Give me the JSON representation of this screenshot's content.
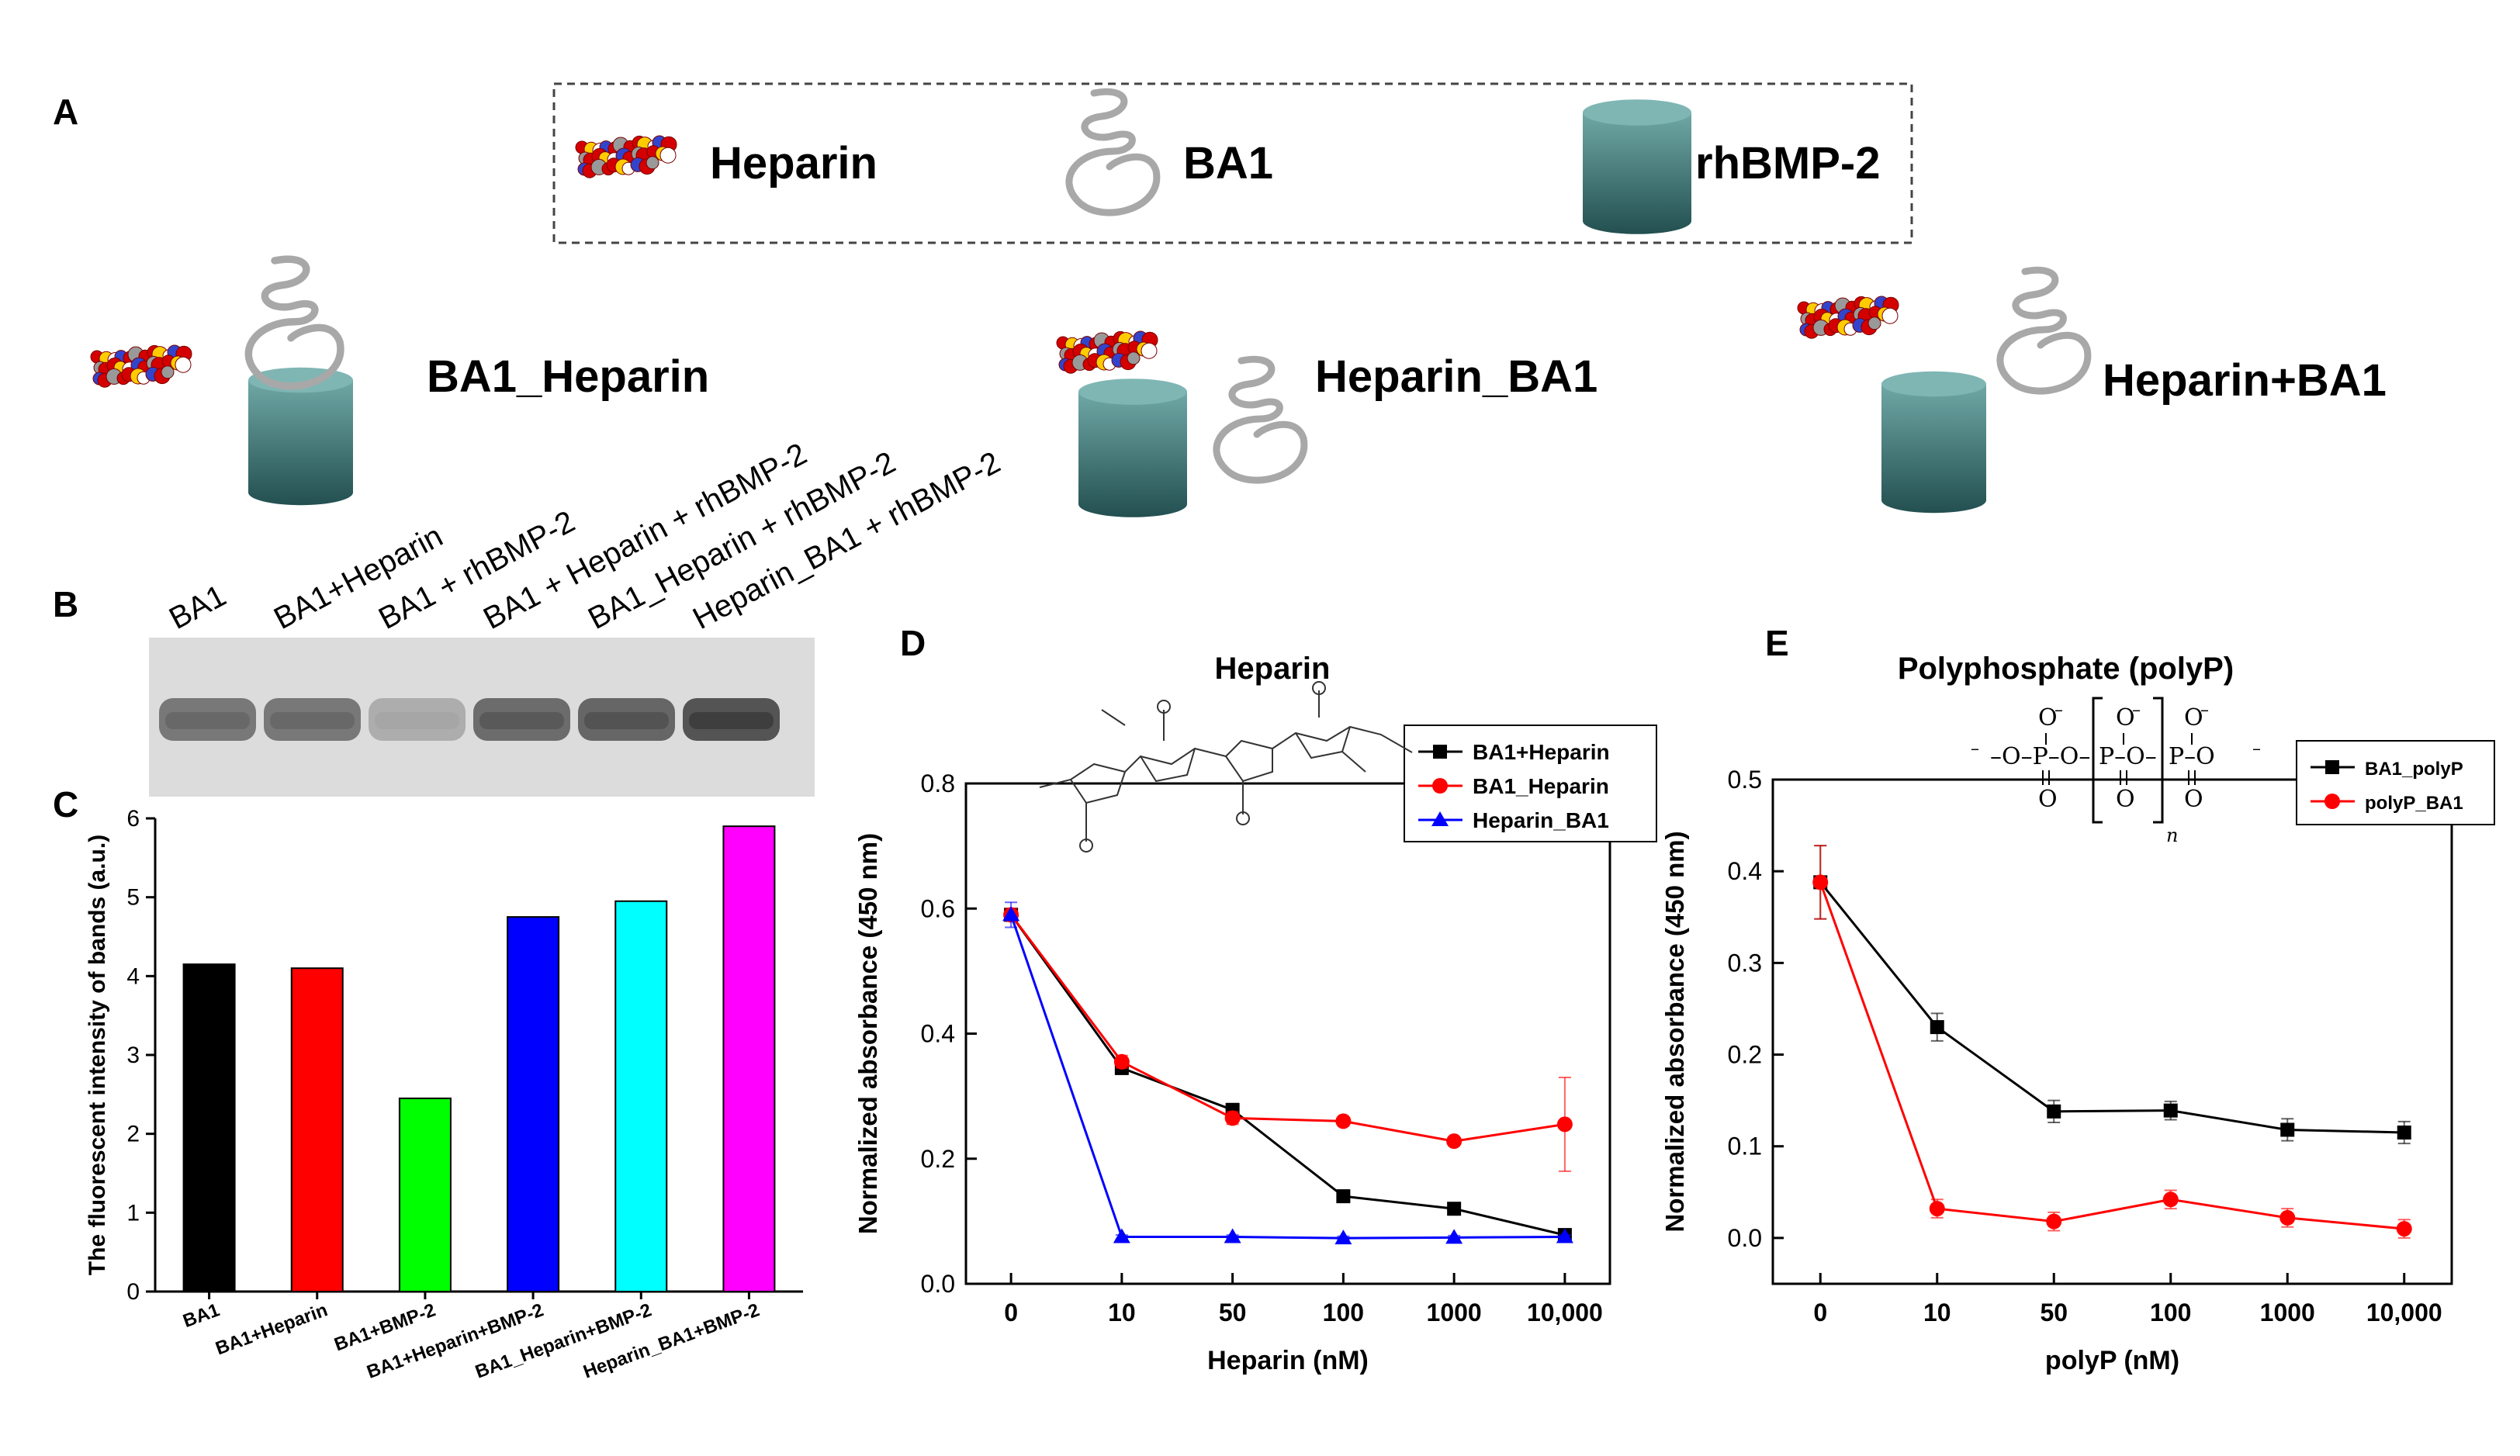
{
  "panel_letters": {
    "a": "A",
    "b": "B",
    "c": "C",
    "d": "D",
    "e": "E"
  },
  "legend_box": {
    "heparin": "Heparin",
    "ba1": "BA1",
    "rhbmp2": "rhBMP-2"
  },
  "complexes": {
    "c1": "BA1_Heparin",
    "c2": "Heparin_BA1",
    "c3": "Heparin+BA1"
  },
  "colors": {
    "protein": "#2f6e6e",
    "protein_top": "#7fb6b4",
    "coil": "#a8a8a8",
    "gel_bg": "#dcdcdc",
    "band": "#6a6a6a",
    "black": "#000000",
    "red": "#ff0000",
    "blue": "#0000ff"
  },
  "gel": {
    "lane_labels": [
      "BA1",
      "BA1+Heparin",
      "BA1 + rhBMP-2",
      "BA1 + Heparin + rhBMP-2",
      "BA1_Heparin + rhBMP-2",
      "Heparin_BA1 + rhBMP-2"
    ],
    "band_intensity": [
      0.7,
      0.7,
      0.25,
      0.8,
      0.85,
      1.0
    ]
  },
  "chart_data": [
    {
      "type": "bar",
      "panel": "C",
      "categories": [
        "BA1",
        "BA1+Heparin",
        "BA1+BMP-2",
        "BA1+Heparin+BMP-2",
        "BA1_Heparin+BMP-2",
        "Heparin_BA1+BMP-2"
      ],
      "values": [
        4.15,
        4.1,
        2.45,
        4.75,
        4.95,
        5.9
      ],
      "colors": [
        "#000000",
        "#ff0000",
        "#00ff00",
        "#0000ff",
        "#00ffff",
        "#ff00ff"
      ],
      "ylabel": "The fluorescent intensity of bands (a.u.)",
      "ylim": [
        0,
        6
      ],
      "yticks": [
        "0",
        "1",
        "2",
        "3",
        "4",
        "5",
        "6"
      ],
      "grid": false
    },
    {
      "type": "line",
      "panel": "D",
      "title": "Heparin",
      "xlabel": "Heparin (nM)",
      "ylabel": "Normalized absorbance (450 nm)",
      "categories": [
        "0",
        "10",
        "50",
        "100",
        "1000",
        "10,000"
      ],
      "ylim": [
        0,
        0.8
      ],
      "yticks": [
        "0.0",
        "0.2",
        "0.4",
        "0.6",
        "0.8"
      ],
      "legend_position": "top-right",
      "series": [
        {
          "name": "BA1+Heparin",
          "color": "#000000",
          "marker": "square",
          "values": [
            0.59,
            0.345,
            0.278,
            0.14,
            0.12,
            0.078
          ],
          "errors": [
            0.01,
            0.01,
            0.01,
            0.005,
            0.005,
            0.005
          ]
        },
        {
          "name": "BA1_Heparin",
          "color": "#ff0000",
          "marker": "circle",
          "values": [
            0.59,
            0.355,
            0.265,
            0.26,
            0.228,
            0.255
          ],
          "errors": [
            0.01,
            0.01,
            0.01,
            0.005,
            0.005,
            0.075
          ]
        },
        {
          "name": "Heparin_BA1",
          "color": "#0000ff",
          "marker": "triangle",
          "values": [
            0.59,
            0.075,
            0.075,
            0.073,
            0.074,
            0.075
          ],
          "errors": [
            0.02,
            0.003,
            0.003,
            0.003,
            0.003,
            0.003
          ]
        }
      ]
    },
    {
      "type": "line",
      "panel": "E",
      "title": "Polyphosphate (polyP)",
      "xlabel": "polyP (nM)",
      "ylabel": "Normalized absorbance (450 nm)",
      "categories": [
        "0",
        "10",
        "50",
        "100",
        "1000",
        "10,000"
      ],
      "ylim": [
        -0.05,
        0.5
      ],
      "yticks": [
        "0.0",
        "0.1",
        "0.2",
        "0.3",
        "0.4",
        "0.5"
      ],
      "legend_position": "top-right",
      "series": [
        {
          "name": "BA1_polyP",
          "color": "#000000",
          "marker": "square",
          "values": [
            0.388,
            0.23,
            0.138,
            0.139,
            0.118,
            0.115
          ],
          "errors": [
            0.04,
            0.015,
            0.012,
            0.01,
            0.012,
            0.012
          ]
        },
        {
          "name": "polyP_BA1",
          "color": "#ff0000",
          "marker": "circle",
          "values": [
            0.388,
            0.032,
            0.018,
            0.042,
            0.022,
            0.01
          ],
          "errors": [
            0.04,
            0.01,
            0.01,
            0.01,
            0.01,
            0.01
          ]
        }
      ]
    }
  ]
}
